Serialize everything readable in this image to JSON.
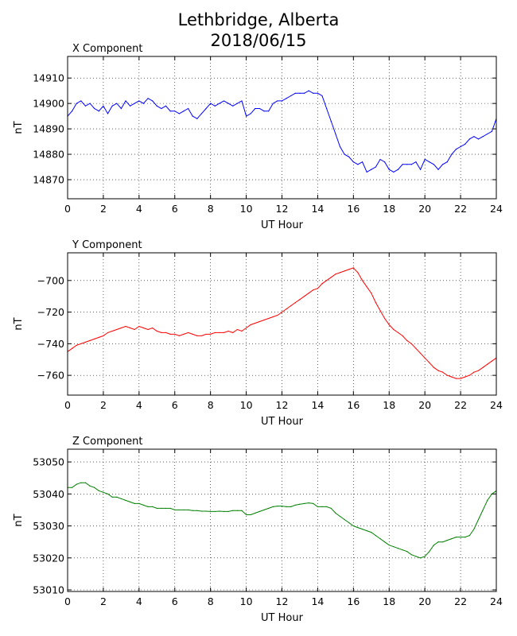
{
  "title": {
    "line1": "Lethbridge, Alberta",
    "line2": "2018/06/15"
  },
  "chart_data": [
    {
      "type": "line",
      "title": "X Component",
      "xlabel": "UT Hour",
      "ylabel": "nT",
      "xlim": [
        0,
        24
      ],
      "ylim": [
        14862.5,
        14918.5
      ],
      "xticks": [
        0,
        2,
        4,
        6,
        8,
        10,
        12,
        14,
        16,
        18,
        20,
        22,
        24
      ],
      "yticks": [
        14870,
        14880,
        14890,
        14900,
        14910
      ],
      "grid": true,
      "color": "#0000ff",
      "series": [
        {
          "x": [
            0,
            0.25,
            0.5,
            0.75,
            1,
            1.25,
            1.5,
            1.75,
            2,
            2.25,
            2.5,
            2.75,
            3,
            3.25,
            3.5,
            3.75,
            4,
            4.25,
            4.5,
            4.75,
            5,
            5.25,
            5.5,
            5.75,
            6,
            6.25,
            6.5,
            6.75,
            7,
            7.25,
            7.5,
            7.75,
            8,
            8.25,
            8.5,
            8.75,
            9,
            9.25,
            9.5,
            9.75,
            10,
            10.25,
            10.5,
            10.75,
            11,
            11.25,
            11.5,
            11.75,
            12,
            12.25,
            12.5,
            12.75,
            13,
            13.25,
            13.5,
            13.75,
            14,
            14.25,
            14.5,
            14.75,
            15,
            15.25,
            15.5,
            15.75,
            16,
            16.25,
            16.5,
            16.75,
            17,
            17.25,
            17.5,
            17.75,
            18,
            18.25,
            18.5,
            18.75,
            19,
            19.25,
            19.5,
            19.75,
            20,
            20.25,
            20.5,
            20.75,
            21,
            21.25,
            21.5,
            21.75,
            22,
            22.25,
            22.5,
            22.75,
            23,
            23.25,
            23.5,
            23.75,
            24
          ],
          "y": [
            14895,
            14897,
            14900,
            14901,
            14899,
            14900,
            14898,
            14897,
            14899,
            14896,
            14899,
            14900,
            14898,
            14901,
            14899,
            14900,
            14901,
            14900,
            14902,
            14901,
            14899,
            14898,
            14899,
            14897,
            14897,
            14896,
            14897,
            14898,
            14895,
            14894,
            14896,
            14898,
            14900,
            14899,
            14900,
            14901,
            14900,
            14899,
            14900,
            14901,
            14895,
            14896,
            14898,
            14898,
            14897,
            14897,
            14900,
            14901,
            14901,
            14902,
            14903,
            14904,
            14904,
            14904,
            14905,
            14904,
            14904,
            14903,
            14898,
            14893,
            14888,
            14883,
            14880,
            14879,
            14877,
            14876,
            14877,
            14873,
            14874,
            14875,
            14878,
            14877,
            14874,
            14873,
            14874,
            14876,
            14876,
            14876,
            14877,
            14874,
            14878,
            14877,
            14876,
            14874,
            14876,
            14877,
            14880,
            14882,
            14883,
            14884,
            14886,
            14887,
            14886,
            14887,
            14888,
            14889,
            14894
          ]
        }
      ]
    },
    {
      "type": "line",
      "title": "Y Component",
      "xlabel": "UT Hour",
      "ylabel": "nT",
      "xlim": [
        0,
        24
      ],
      "ylim": [
        -772.5,
        -682.5
      ],
      "xticks": [
        0,
        2,
        4,
        6,
        8,
        10,
        12,
        14,
        16,
        18,
        20,
        22,
        24
      ],
      "yticks": [
        -700,
        -720,
        -740,
        -760
      ],
      "grid": true,
      "color": "#ff0000",
      "series": [
        {
          "x": [
            0,
            0.25,
            0.5,
            0.75,
            1,
            1.25,
            1.5,
            1.75,
            2,
            2.25,
            2.5,
            2.75,
            3,
            3.25,
            3.5,
            3.75,
            4,
            4.25,
            4.5,
            4.75,
            5,
            5.25,
            5.5,
            5.75,
            6,
            6.25,
            6.5,
            6.75,
            7,
            7.25,
            7.5,
            7.75,
            8,
            8.25,
            8.5,
            8.75,
            9,
            9.25,
            9.5,
            9.75,
            10,
            10.25,
            10.5,
            10.75,
            11,
            11.25,
            11.5,
            11.75,
            12,
            12.25,
            12.5,
            12.75,
            13,
            13.25,
            13.5,
            13.75,
            14,
            14.25,
            14.5,
            14.75,
            15,
            15.25,
            15.5,
            15.75,
            16,
            16.25,
            16.5,
            16.75,
            17,
            17.25,
            17.5,
            17.75,
            18,
            18.25,
            18.5,
            18.75,
            19,
            19.25,
            19.5,
            19.75,
            20,
            20.25,
            20.5,
            20.75,
            21,
            21.25,
            21.5,
            21.75,
            22,
            22.25,
            22.5,
            22.75,
            23,
            23.25,
            23.5,
            23.75,
            24
          ],
          "y": [
            -745,
            -743,
            -741,
            -740,
            -739,
            -738,
            -737,
            -736,
            -735,
            -733,
            -732,
            -731,
            -730,
            -729,
            -730,
            -731,
            -729,
            -730,
            -731,
            -730,
            -732,
            -733,
            -733,
            -734,
            -734,
            -735,
            -734,
            -733,
            -734,
            -735,
            -735,
            -734,
            -734,
            -733,
            -733,
            -733,
            -732,
            -733,
            -731,
            -732,
            -730,
            -728,
            -727,
            -726,
            -725,
            -724,
            -723,
            -722,
            -720,
            -718,
            -716,
            -714,
            -712,
            -710,
            -708,
            -706,
            -705,
            -702,
            -700,
            -698,
            -696,
            -695,
            -694,
            -693,
            -692,
            -695,
            -700,
            -704,
            -708,
            -714,
            -719,
            -724,
            -728,
            -731,
            -733,
            -735,
            -738,
            -740,
            -743,
            -746,
            -749,
            -752,
            -755,
            -757,
            -758,
            -760,
            -761,
            -762,
            -762,
            -761,
            -760,
            -758,
            -757,
            -755,
            -753,
            -751,
            -749
          ]
        }
      ]
    },
    {
      "type": "line",
      "title": "Z Component",
      "xlabel": "UT Hour",
      "ylabel": "nT",
      "xlim": [
        0,
        24
      ],
      "ylim": [
        53009.5,
        53054
      ],
      "xticks": [
        0,
        2,
        4,
        6,
        8,
        10,
        12,
        14,
        16,
        18,
        20,
        22,
        24
      ],
      "yticks": [
        53010,
        53020,
        53030,
        53040,
        53050
      ],
      "grid": true,
      "color": "#008000",
      "series": [
        {
          "x": [
            0,
            0.25,
            0.5,
            0.75,
            1,
            1.25,
            1.5,
            1.75,
            2,
            2.25,
            2.5,
            2.75,
            3,
            3.25,
            3.5,
            3.75,
            4,
            4.25,
            4.5,
            4.75,
            5,
            5.25,
            5.5,
            5.75,
            6,
            6.25,
            6.5,
            6.75,
            7,
            7.25,
            7.5,
            7.75,
            8,
            8.25,
            8.5,
            8.75,
            9,
            9.25,
            9.5,
            9.75,
            10,
            10.25,
            10.5,
            10.75,
            11,
            11.25,
            11.5,
            11.75,
            12,
            12.25,
            12.5,
            12.75,
            13,
            13.25,
            13.5,
            13.75,
            14,
            14.25,
            14.5,
            14.75,
            15,
            15.25,
            15.5,
            15.75,
            16,
            16.25,
            16.5,
            16.75,
            17,
            17.25,
            17.5,
            17.75,
            18,
            18.25,
            18.5,
            18.75,
            19,
            19.25,
            19.5,
            19.75,
            20,
            20.25,
            20.5,
            20.75,
            21,
            21.25,
            21.5,
            21.75,
            22,
            22.25,
            22.5,
            22.75,
            23,
            23.25,
            23.5,
            23.75,
            24
          ],
          "y": [
            53042,
            53042,
            53043,
            53043.5,
            53043.5,
            53042.5,
            53042,
            53041,
            53040.5,
            53040,
            53039,
            53039,
            53038.5,
            53038,
            53037.5,
            53037,
            53037,
            53036.5,
            53036,
            53036,
            53035.5,
            53035.5,
            53035.5,
            53035.5,
            53035,
            53035,
            53035,
            53035,
            53034.8,
            53034.8,
            53034.6,
            53034.6,
            53034.5,
            53034.5,
            53034.6,
            53034.5,
            53034.5,
            53034.8,
            53034.8,
            53034.8,
            53033.5,
            53033.5,
            53034,
            53034.5,
            53035,
            53035.5,
            53036,
            53036.2,
            53036.2,
            53036,
            53036,
            53036.5,
            53036.8,
            53037,
            53037.2,
            53037,
            53036,
            53036,
            53036,
            53035.5,
            53034,
            53033,
            53032,
            53031,
            53030,
            53029.5,
            53029,
            53028.5,
            53028,
            53027,
            53026,
            53025,
            53024,
            53023.5,
            53023,
            53022.5,
            53022,
            53021,
            53020.5,
            53020,
            53020.5,
            53022,
            53024,
            53025,
            53025,
            53025.5,
            53026,
            53026.5,
            53026.5,
            53026.5,
            53027,
            53029,
            53032,
            53035,
            53038,
            53040,
            53041
          ]
        }
      ]
    }
  ]
}
